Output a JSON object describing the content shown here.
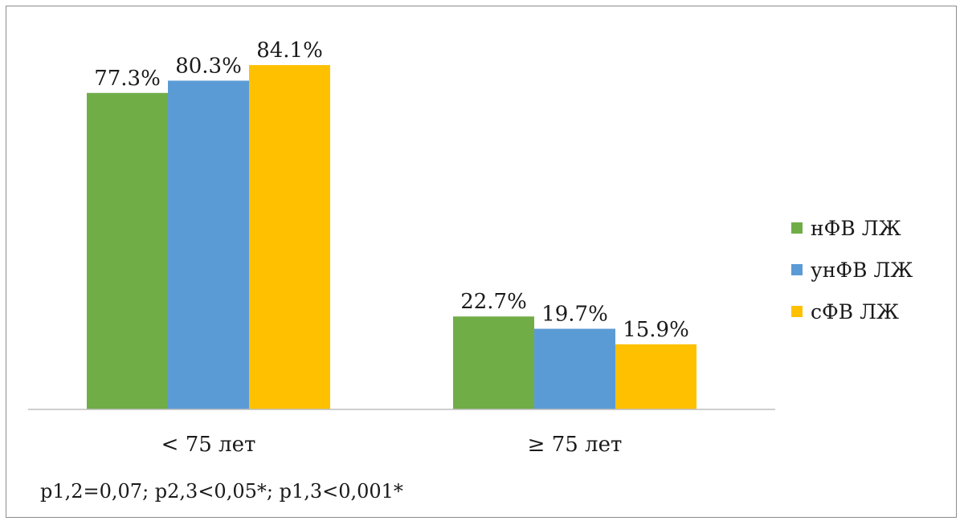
{
  "chart_data": {
    "type": "bar",
    "categories": [
      "< 75 лет",
      "≥ 75 лет"
    ],
    "series": [
      {
        "name": "нФВ ЛЖ",
        "color": "#70ad47",
        "values": [
          77.3,
          22.7
        ],
        "labels": [
          "77.3%",
          "22.7%"
        ]
      },
      {
        "name": "унФВ ЛЖ",
        "color": "#5b9bd5",
        "values": [
          80.3,
          19.7
        ],
        "labels": [
          "80.3%",
          "19.7%"
        ]
      },
      {
        "name": "сФВ ЛЖ",
        "color": "#ffc000",
        "values": [
          84.1,
          15.9
        ],
        "labels": [
          "84.1%",
          "15.9%"
        ]
      }
    ],
    "ylim": [
      0,
      100
    ],
    "grid": false,
    "legend_position": "right",
    "xlabel": "",
    "ylabel": ""
  },
  "legend": {
    "items": [
      {
        "label": "нФВ ЛЖ",
        "color": "#70ad47"
      },
      {
        "label": "унФВ ЛЖ",
        "color": "#5b9bd5"
      },
      {
        "label": "сФВ ЛЖ",
        "color": "#ffc000"
      }
    ]
  },
  "footnote": "p1,2=0,07; p2,3<0,05*; p1,3<0,001*"
}
